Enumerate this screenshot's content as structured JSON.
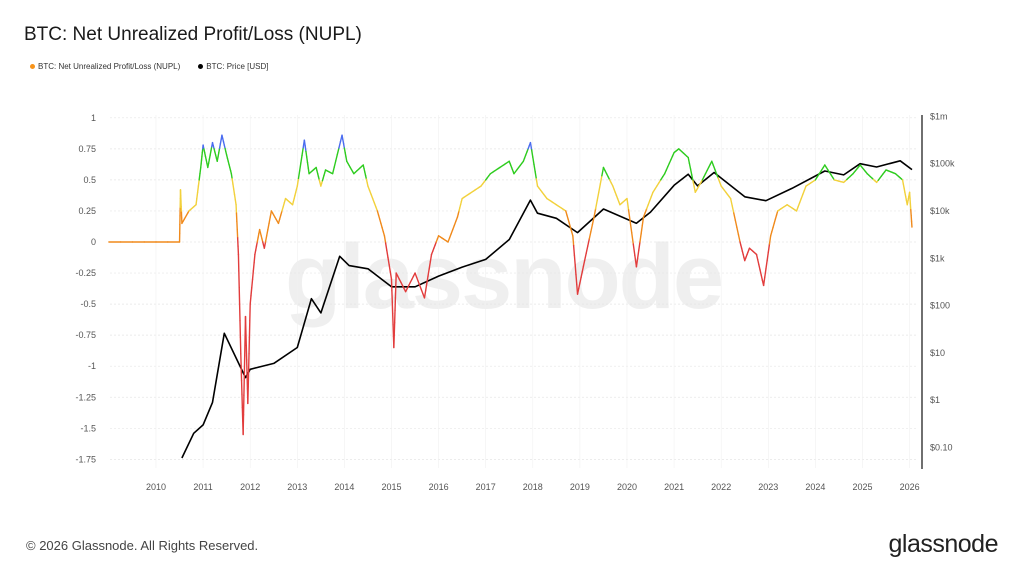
{
  "chart_data": {
    "type": "line",
    "title": "BTC: Net Unrealized Profit/Loss (NUPL)",
    "legend": [
      {
        "name": "BTC: Net Unrealized Profit/Loss (NUPL)",
        "color": "#f7931a"
      },
      {
        "name": "BTC: Price [USD]",
        "color": "#000000"
      }
    ],
    "legend_placement": "top-left",
    "x_ticks": [
      "2010",
      "2011",
      "2012",
      "2013",
      "2014",
      "2015",
      "2016",
      "2017",
      "2018",
      "2019",
      "2020",
      "2021",
      "2022",
      "2023",
      "2024",
      "2025",
      "2026"
    ],
    "xlim": [
      2009.0,
      2026.15
    ],
    "y_left": {
      "ticks": [
        "1",
        "0.75",
        "0.5",
        "0.25",
        "0",
        "-0.25",
        "-0.5",
        "-0.75",
        "-1",
        "-1.25",
        "-1.5",
        "-1.75"
      ],
      "ylim": [
        -1.8,
        1
      ]
    },
    "y_right": {
      "scale": "log",
      "ticks": [
        "$1m",
        "$100k",
        "$10k",
        "$1k",
        "$100",
        "$10",
        "$1",
        "$0.10"
      ]
    },
    "grid": true,
    "nupl_zone_colors": {
      "above_0.75": "#4a6cf0",
      "0.5_to_0.75": "#2ecc1f",
      "0.25_to_0.5": "#f2d13c",
      "0_to_0.25": "#f08a1c",
      "below_0": "#e23c3c"
    },
    "series": [
      {
        "name": "BTC: Net Unrealized Profit/Loss (NUPL)",
        "axis": "left",
        "points": [
          [
            2009.0,
            0
          ],
          [
            2010.5,
            0
          ],
          [
            2010.52,
            0.42
          ],
          [
            2010.55,
            0.15
          ],
          [
            2010.7,
            0.25
          ],
          [
            2010.85,
            0.3
          ],
          [
            2010.95,
            0.6
          ],
          [
            2011.0,
            0.78
          ],
          [
            2011.1,
            0.6
          ],
          [
            2011.2,
            0.8
          ],
          [
            2011.3,
            0.65
          ],
          [
            2011.4,
            0.86
          ],
          [
            2011.5,
            0.7
          ],
          [
            2011.6,
            0.55
          ],
          [
            2011.7,
            0.3
          ],
          [
            2011.75,
            -0.1
          ],
          [
            2011.8,
            -0.9
          ],
          [
            2011.85,
            -1.55
          ],
          [
            2011.9,
            -0.6
          ],
          [
            2011.95,
            -1.3
          ],
          [
            2012.0,
            -0.5
          ],
          [
            2012.1,
            -0.1
          ],
          [
            2012.2,
            0.1
          ],
          [
            2012.3,
            -0.05
          ],
          [
            2012.45,
            0.25
          ],
          [
            2012.6,
            0.15
          ],
          [
            2012.75,
            0.35
          ],
          [
            2012.9,
            0.3
          ],
          [
            2013.0,
            0.45
          ],
          [
            2013.15,
            0.82
          ],
          [
            2013.25,
            0.55
          ],
          [
            2013.4,
            0.6
          ],
          [
            2013.5,
            0.45
          ],
          [
            2013.6,
            0.58
          ],
          [
            2013.75,
            0.55
          ],
          [
            2013.95,
            0.86
          ],
          [
            2014.05,
            0.65
          ],
          [
            2014.2,
            0.55
          ],
          [
            2014.4,
            0.62
          ],
          [
            2014.5,
            0.45
          ],
          [
            2014.7,
            0.25
          ],
          [
            2014.85,
            0.05
          ],
          [
            2015.0,
            -0.3
          ],
          [
            2015.05,
            -0.85
          ],
          [
            2015.1,
            -0.25
          ],
          [
            2015.3,
            -0.4
          ],
          [
            2015.5,
            -0.25
          ],
          [
            2015.7,
            -0.45
          ],
          [
            2015.85,
            -0.1
          ],
          [
            2016.0,
            0.05
          ],
          [
            2016.2,
            0.0
          ],
          [
            2016.4,
            0.2
          ],
          [
            2016.5,
            0.35
          ],
          [
            2016.7,
            0.4
          ],
          [
            2016.9,
            0.45
          ],
          [
            2017.1,
            0.55
          ],
          [
            2017.3,
            0.6
          ],
          [
            2017.5,
            0.65
          ],
          [
            2017.6,
            0.55
          ],
          [
            2017.8,
            0.65
          ],
          [
            2017.95,
            0.8
          ],
          [
            2018.1,
            0.45
          ],
          [
            2018.3,
            0.35
          ],
          [
            2018.5,
            0.3
          ],
          [
            2018.7,
            0.25
          ],
          [
            2018.85,
            0.05
          ],
          [
            2018.95,
            -0.42
          ],
          [
            2019.1,
            -0.15
          ],
          [
            2019.3,
            0.2
          ],
          [
            2019.5,
            0.6
          ],
          [
            2019.7,
            0.45
          ],
          [
            2019.85,
            0.3
          ],
          [
            2020.0,
            0.35
          ],
          [
            2020.2,
            -0.2
          ],
          [
            2020.35,
            0.2
          ],
          [
            2020.55,
            0.4
          ],
          [
            2020.8,
            0.55
          ],
          [
            2021.0,
            0.72
          ],
          [
            2021.1,
            0.75
          ],
          [
            2021.3,
            0.68
          ],
          [
            2021.45,
            0.4
          ],
          [
            2021.6,
            0.5
          ],
          [
            2021.8,
            0.65
          ],
          [
            2022.0,
            0.45
          ],
          [
            2022.2,
            0.35
          ],
          [
            2022.4,
            0.0
          ],
          [
            2022.5,
            -0.15
          ],
          [
            2022.6,
            -0.05
          ],
          [
            2022.75,
            -0.1
          ],
          [
            2022.9,
            -0.35
          ],
          [
            2023.05,
            0.05
          ],
          [
            2023.2,
            0.25
          ],
          [
            2023.4,
            0.3
          ],
          [
            2023.6,
            0.25
          ],
          [
            2023.8,
            0.45
          ],
          [
            2024.0,
            0.5
          ],
          [
            2024.2,
            0.62
          ],
          [
            2024.4,
            0.5
          ],
          [
            2024.6,
            0.48
          ],
          [
            2024.8,
            0.55
          ],
          [
            2024.95,
            0.62
          ],
          [
            2025.1,
            0.55
          ],
          [
            2025.3,
            0.48
          ],
          [
            2025.5,
            0.58
          ],
          [
            2025.7,
            0.55
          ],
          [
            2025.85,
            0.5
          ],
          [
            2025.95,
            0.3
          ],
          [
            2026.0,
            0.4
          ],
          [
            2026.05,
            0.12
          ]
        ]
      },
      {
        "name": "BTC: Price [USD]",
        "axis": "right",
        "points": [
          [
            2010.55,
            0.06
          ],
          [
            2010.8,
            0.2
          ],
          [
            2011.0,
            0.3
          ],
          [
            2011.2,
            0.9
          ],
          [
            2011.45,
            26
          ],
          [
            2011.9,
            3
          ],
          [
            2012.0,
            4.5
          ],
          [
            2012.5,
            6
          ],
          [
            2013.0,
            13
          ],
          [
            2013.3,
            140
          ],
          [
            2013.5,
            70
          ],
          [
            2013.9,
            1100
          ],
          [
            2014.1,
            700
          ],
          [
            2014.5,
            600
          ],
          [
            2015.0,
            250
          ],
          [
            2015.5,
            250
          ],
          [
            2016.0,
            420
          ],
          [
            2016.5,
            650
          ],
          [
            2017.0,
            950
          ],
          [
            2017.5,
            2500
          ],
          [
            2017.95,
            17000
          ],
          [
            2018.1,
            9000
          ],
          [
            2018.5,
            7000
          ],
          [
            2018.95,
            3500
          ],
          [
            2019.5,
            11000
          ],
          [
            2020.2,
            5500
          ],
          [
            2020.5,
            9500
          ],
          [
            2021.0,
            35000
          ],
          [
            2021.3,
            60000
          ],
          [
            2021.5,
            34000
          ],
          [
            2021.85,
            65000
          ],
          [
            2022.5,
            20000
          ],
          [
            2022.95,
            16500
          ],
          [
            2023.5,
            30000
          ],
          [
            2024.2,
            70000
          ],
          [
            2024.6,
            58000
          ],
          [
            2024.95,
            100000
          ],
          [
            2025.3,
            85000
          ],
          [
            2025.8,
            115000
          ],
          [
            2026.05,
            75000
          ]
        ]
      }
    ]
  },
  "watermark": "glassnode",
  "footer": {
    "copyright": "© 2026 Glassnode. All Rights Reserved.",
    "logo": "glassnode"
  }
}
